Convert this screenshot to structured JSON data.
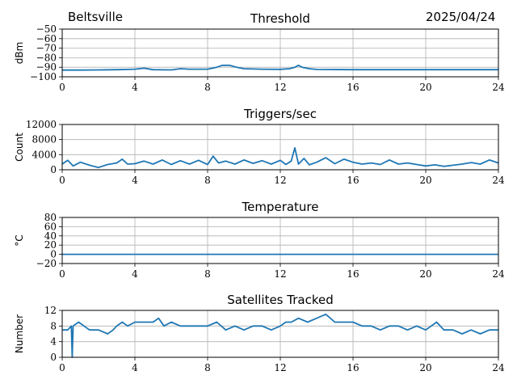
{
  "header": {
    "location": "Beltsville",
    "date": "2025/04/24"
  },
  "chart_data": [
    {
      "type": "line",
      "title": "Threshold",
      "xlabel": "",
      "ylabel": "dBm",
      "xlim": [
        0,
        24
      ],
      "ylim": [
        -100,
        -50
      ],
      "xticks": [
        0,
        4,
        8,
        12,
        16,
        20,
        24
      ],
      "yticks": [
        -50,
        -60,
        -70,
        -80,
        -90,
        -100
      ],
      "ytick_labels": [
        "−50",
        "−60",
        "−70",
        "−80",
        "−90",
        "−100"
      ],
      "grid": true,
      "color": "#1f77b4",
      "series": [
        {
          "x": [
            0,
            1,
            2,
            3,
            4,
            4.5,
            5,
            6,
            6.5,
            7,
            8,
            8.5,
            8.8,
            9.2,
            9.6,
            10,
            11,
            12,
            12.5,
            12.8,
            13,
            13.2,
            13.6,
            14,
            16,
            18,
            20,
            22,
            24
          ],
          "y": [
            -93,
            -93,
            -92.8,
            -92.5,
            -92,
            -91,
            -92.5,
            -92.8,
            -91.5,
            -92,
            -92,
            -90,
            -88,
            -88,
            -90,
            -91.5,
            -92,
            -92.2,
            -91.5,
            -90,
            -88,
            -90,
            -91.5,
            -92.3,
            -92.5,
            -92.5,
            -92.5,
            -92.5,
            -92.5
          ]
        }
      ]
    },
    {
      "type": "line",
      "title": "Triggers/sec",
      "xlabel": "",
      "ylabel": "Count",
      "xlim": [
        0,
        24
      ],
      "ylim": [
        0,
        12000
      ],
      "xticks": [
        0,
        4,
        8,
        12,
        16,
        20,
        24
      ],
      "yticks": [
        0,
        4000,
        8000,
        12000
      ],
      "ytick_labels": [
        "0",
        "4000",
        "8000",
        "12000"
      ],
      "grid": true,
      "color": "#1f77b4",
      "series": [
        {
          "x": [
            0,
            0.3,
            0.6,
            1,
            1.5,
            2,
            2.5,
            3,
            3.3,
            3.6,
            4,
            4.5,
            5,
            5.5,
            6,
            6.5,
            7,
            7.5,
            8,
            8.3,
            8.6,
            9,
            9.5,
            10,
            10.5,
            11,
            11.5,
            12,
            12.3,
            12.6,
            12.8,
            13,
            13.3,
            13.6,
            14,
            14.5,
            15,
            15.5,
            16,
            16.5,
            17,
            17.5,
            18,
            18.5,
            19,
            19.5,
            20,
            20.5,
            21,
            21.5,
            22,
            22.5,
            23,
            23.5,
            24
          ],
          "y": [
            1500,
            2500,
            1000,
            2000,
            1200,
            600,
            1400,
            1800,
            2800,
            1500,
            1600,
            2300,
            1500,
            2600,
            1400,
            2400,
            1500,
            2500,
            1400,
            3600,
            1800,
            2300,
            1500,
            2600,
            1700,
            2400,
            1500,
            2500,
            1400,
            2300,
            5800,
            1500,
            3000,
            1300,
            2000,
            3200,
            1600,
            2800,
            2000,
            1500,
            1800,
            1400,
            2600,
            1500,
            1800,
            1400,
            1000,
            1300,
            900,
            1200,
            1500,
            1900,
            1500,
            2600,
            1800
          ]
        }
      ]
    },
    {
      "type": "line",
      "title": "Temperature",
      "xlabel": "",
      "ylabel": "°C",
      "xlim": [
        0,
        24
      ],
      "ylim": [
        -20,
        80
      ],
      "xticks": [
        0,
        4,
        8,
        12,
        16,
        20,
        24
      ],
      "yticks": [
        -20,
        0,
        20,
        40,
        60,
        80
      ],
      "ytick_labels": [
        "−20",
        "0",
        "20",
        "40",
        "60",
        "80"
      ],
      "grid": true,
      "color": "#1f77b4",
      "series": [
        {
          "x": [
            0,
            24
          ],
          "y": [
            0,
            0
          ]
        }
      ]
    },
    {
      "type": "line",
      "title": "Satellites Tracked",
      "xlabel": "",
      "ylabel": "Number",
      "xlim": [
        0,
        24
      ],
      "ylim": [
        0,
        12
      ],
      "xticks": [
        0,
        4,
        8,
        12,
        16,
        20,
        24
      ],
      "yticks": [
        0,
        4,
        8,
        12
      ],
      "ytick_labels": [
        "0",
        "4",
        "8",
        "12"
      ],
      "grid": true,
      "color": "#1f77b4",
      "series": [
        {
          "x": [
            0,
            0.3,
            0.5,
            0.55,
            0.6,
            0.9,
            1.2,
            1.5,
            2,
            2.5,
            2.8,
            3,
            3.3,
            3.6,
            4,
            4.5,
            5,
            5.3,
            5.6,
            6,
            6.5,
            7,
            7.5,
            8,
            8.5,
            9,
            9.5,
            10,
            10.5,
            11,
            11.5,
            12,
            12.3,
            12.6,
            13,
            13.5,
            14,
            14.5,
            15,
            15.5,
            16,
            16.5,
            17,
            17.5,
            18,
            18.5,
            19,
            19.5,
            20,
            20.3,
            20.6,
            21,
            21.5,
            22,
            22.5,
            23,
            23.5,
            24
          ],
          "y": [
            7,
            7,
            8,
            0,
            8,
            9,
            8,
            7,
            7,
            6,
            7,
            8,
            9,
            8,
            9,
            9,
            9,
            10,
            8,
            9,
            8,
            8,
            8,
            8,
            9,
            7,
            8,
            7,
            8,
            8,
            7,
            8,
            9,
            9,
            10,
            9,
            10,
            11,
            9,
            9,
            9,
            8,
            8,
            7,
            8,
            8,
            7,
            8,
            7,
            8,
            9,
            7,
            7,
            6,
            7,
            6,
            7,
            7
          ]
        }
      ]
    }
  ]
}
